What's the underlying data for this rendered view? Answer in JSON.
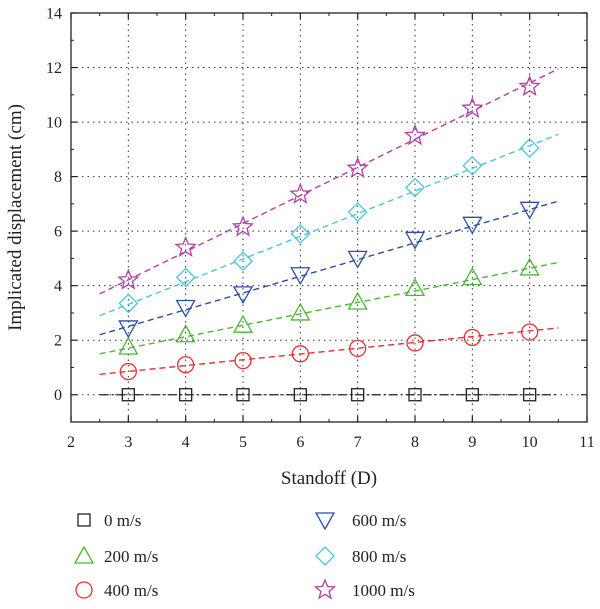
{
  "chart_data": {
    "type": "scatter",
    "title": "",
    "xlabel": "Standoff (D)",
    "ylabel": "Implicated displacement (cm)",
    "xlim": [
      2,
      11
    ],
    "ylim": [
      -1,
      14
    ],
    "xticks": [
      2,
      3,
      4,
      5,
      6,
      7,
      8,
      9,
      10,
      11
    ],
    "yticks": [
      0,
      2,
      4,
      6,
      8,
      10,
      12,
      14
    ],
    "grid": true,
    "legend_position": "bottom",
    "x": [
      3,
      4,
      5,
      6,
      7,
      8,
      9,
      10
    ],
    "series": [
      {
        "name": "0 m/s",
        "marker": "square",
        "color": "#222222",
        "values": [
          0,
          0,
          0,
          0,
          0,
          0,
          0,
          0
        ],
        "fit": [
          2.5,
          0,
          10.5,
          0
        ]
      },
      {
        "name": "200 m/s",
        "marker": "triangle-up",
        "color": "#4cb833",
        "values": [
          1.75,
          2.2,
          2.55,
          3.0,
          3.4,
          3.9,
          4.3,
          4.65
        ],
        "fit": [
          2.5,
          1.5,
          10.5,
          4.85
        ]
      },
      {
        "name": "400 m/s",
        "marker": "circle",
        "color": "#e53030",
        "values": [
          0.85,
          1.1,
          1.25,
          1.5,
          1.7,
          1.9,
          2.1,
          2.3
        ],
        "fit": [
          2.5,
          0.75,
          10.5,
          2.45
        ]
      },
      {
        "name": "600 m/s",
        "marker": "triangle-down",
        "color": "#2b4ea3",
        "values": [
          2.45,
          3.2,
          3.7,
          4.4,
          5.0,
          5.7,
          6.25,
          6.8
        ],
        "fit": [
          2.5,
          2.2,
          10.5,
          7.1
        ]
      },
      {
        "name": "800 m/s",
        "marker": "diamond",
        "color": "#49c8dc",
        "values": [
          3.35,
          4.3,
          4.9,
          5.9,
          6.7,
          7.6,
          8.4,
          9.05
        ],
        "fit": [
          2.5,
          2.9,
          10.5,
          9.55
        ]
      },
      {
        "name": "1000 m/s",
        "marker": "star",
        "color": "#b33fa8",
        "values": [
          4.2,
          5.4,
          6.15,
          7.35,
          8.3,
          9.5,
          10.5,
          11.3
        ],
        "fit": [
          2.5,
          3.7,
          10.5,
          11.95
        ]
      }
    ]
  }
}
